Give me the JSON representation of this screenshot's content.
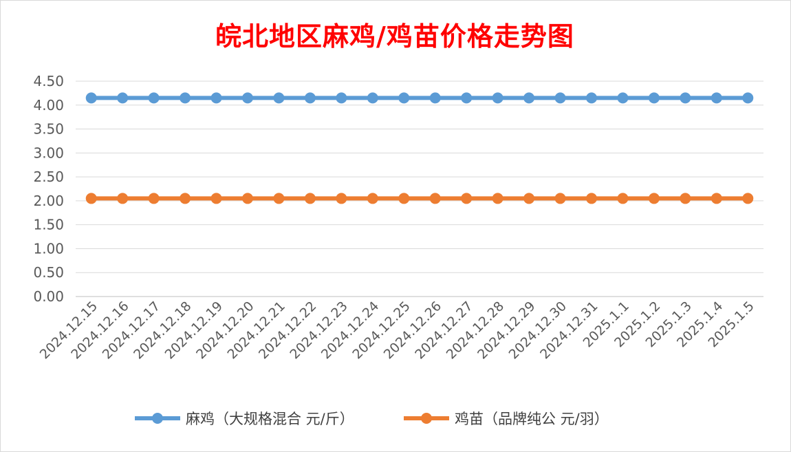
{
  "chart_data": {
    "type": "line",
    "title": "皖北地区麻鸡/鸡苗价格走势图",
    "categories": [
      "2024.12.15",
      "2024.12.16",
      "2024.12.17",
      "2024.12.18",
      "2024.12.19",
      "2024.12.20",
      "2024.12.21",
      "2024.12.22",
      "2024.12.23",
      "2024.12.24",
      "2024.12.25",
      "2024.12.26",
      "2024.12.27",
      "2024.12.28",
      "2024.12.29",
      "2024.12.30",
      "2024.12.31",
      "2025.1.1",
      "2025.1.2",
      "2025.1.3",
      "2025.1.4",
      "2025.1.5"
    ],
    "series": [
      {
        "name": "麻鸡（大规格混合 元/斤）",
        "color": "#5b9bd5",
        "values": [
          4.15,
          4.15,
          4.15,
          4.15,
          4.15,
          4.15,
          4.15,
          4.15,
          4.15,
          4.15,
          4.15,
          4.15,
          4.15,
          4.15,
          4.15,
          4.15,
          4.15,
          4.15,
          4.15,
          4.15,
          4.15,
          4.15
        ]
      },
      {
        "name": "鸡苗（品牌纯公 元/羽）",
        "color": "#ed7d31",
        "values": [
          2.05,
          2.05,
          2.05,
          2.05,
          2.05,
          2.05,
          2.05,
          2.05,
          2.05,
          2.05,
          2.05,
          2.05,
          2.05,
          2.05,
          2.05,
          2.05,
          2.05,
          2.05,
          2.05,
          2.05,
          2.05,
          2.05
        ]
      }
    ],
    "yticks": [
      "0.00",
      "0.50",
      "1.00",
      "1.50",
      "2.00",
      "2.50",
      "3.00",
      "3.50",
      "4.00",
      "4.50"
    ],
    "ylim": [
      0,
      4.5
    ],
    "grid": true,
    "legend": "bottom"
  }
}
